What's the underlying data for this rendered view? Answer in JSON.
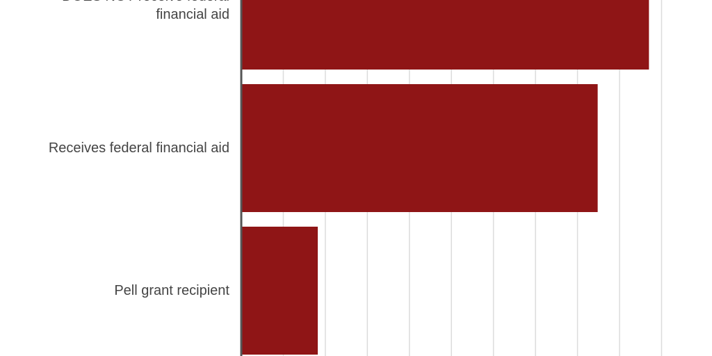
{
  "chart_data": {
    "type": "barh",
    "categories": [
      "DOES NOT receive federal financial aid",
      "Receives federal financial aid",
      "Pell grant recipient"
    ],
    "values": [
      9.7,
      8.48,
      1.82
    ],
    "color": "#8f1516",
    "xlim": [
      0,
      11.2
    ],
    "xticks": [
      0,
      1,
      2,
      3,
      4,
      5,
      6,
      7,
      8,
      9,
      10
    ],
    "grid": true
  }
}
